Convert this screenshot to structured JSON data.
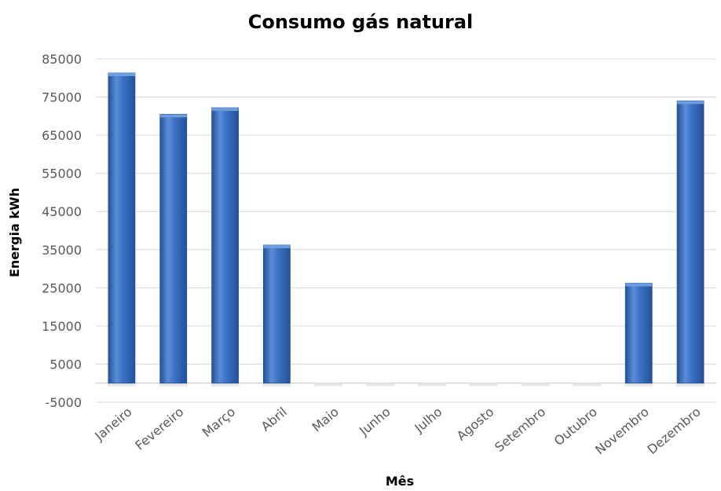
{
  "chart_data": {
    "type": "bar",
    "title": "Consumo gás natural",
    "xlabel": "Mês",
    "ylabel": "Energia kWh",
    "categories": [
      "Janeiro",
      "Fevereiro",
      "Março",
      "Abril",
      "Maio",
      "Junho",
      "Julho",
      "Agosto",
      "Setembro",
      "Outubro",
      "Novembro",
      "Dezembro"
    ],
    "values": [
      81300,
      70500,
      72200,
      36200,
      0,
      0,
      0,
      0,
      0,
      0,
      26200,
      74000
    ],
    "ylim": [
      -5000,
      85000
    ],
    "yticks": [
      "-5000",
      "5000",
      "15000",
      "25000",
      "35000",
      "45000",
      "55000",
      "65000",
      "75000",
      "85000"
    ],
    "grid": true,
    "legend": "none",
    "colors": {
      "bar": "#3a72c4",
      "bar_light": "#6b9de0",
      "bar_dark": "#23519a",
      "grid": "#d9d9d9"
    }
  }
}
